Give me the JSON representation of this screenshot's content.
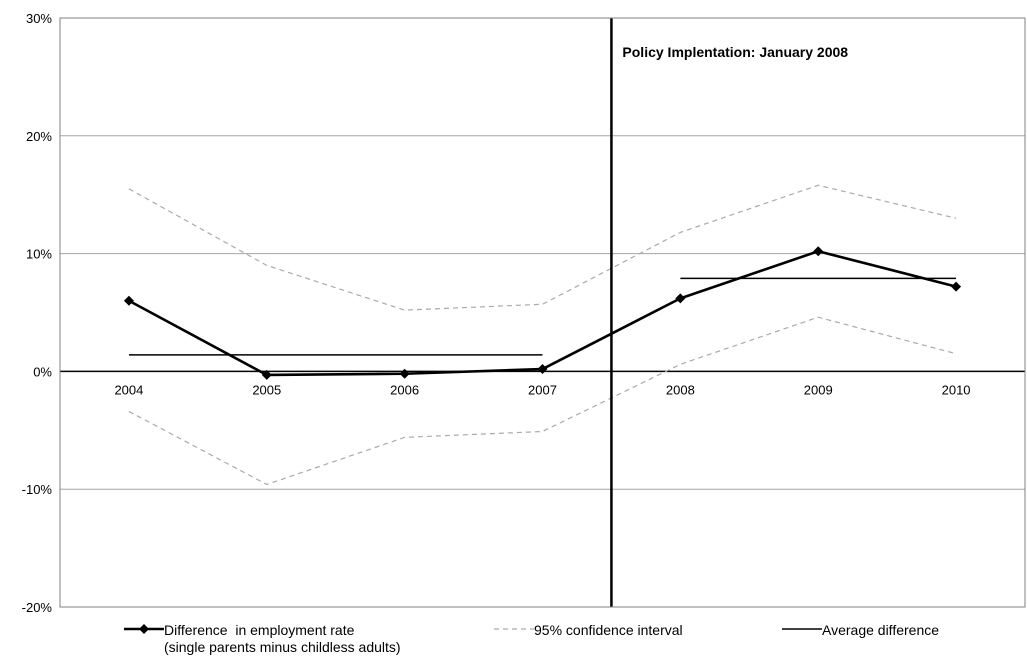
{
  "chart_data": {
    "type": "line",
    "x": [
      "2004",
      "2005",
      "2006",
      "2007",
      "2008",
      "2009",
      "2010"
    ],
    "ylim": [
      -20,
      30
    ],
    "yticks": [
      -20,
      -10,
      0,
      10,
      20,
      30
    ],
    "ytick_labels": [
      "-20%",
      "-10%",
      "0%",
      "10%",
      "20%",
      "30%"
    ],
    "grid": true,
    "series": [
      {
        "name": "Difference  in employment rate",
        "name_line2": "(single parents minus childless adults)",
        "style": "solid-marker",
        "color": "#000000",
        "values": [
          6.0,
          -0.3,
          -0.2,
          0.2,
          6.2,
          10.2,
          7.2
        ]
      },
      {
        "name": "95% confidence interval",
        "style": "dashed",
        "color": "#aaaaaa",
        "upper": [
          15.5,
          9.0,
          5.2,
          5.7,
          11.8,
          15.8,
          13.0
        ],
        "lower": [
          -3.4,
          -9.6,
          -5.6,
          -5.1,
          0.6,
          4.6,
          1.5
        ]
      },
      {
        "name": "Average difference",
        "style": "solid",
        "color": "#000000",
        "segments": [
          {
            "from": "2004",
            "to": "2007",
            "value": 1.4
          },
          {
            "from": "2008",
            "to": "2010",
            "value": 7.9
          }
        ]
      }
    ],
    "annotation": {
      "text": "Policy Implentation: January 2008",
      "at_x_between": [
        "2007",
        "2008"
      ]
    },
    "legend_position": "bottom"
  }
}
